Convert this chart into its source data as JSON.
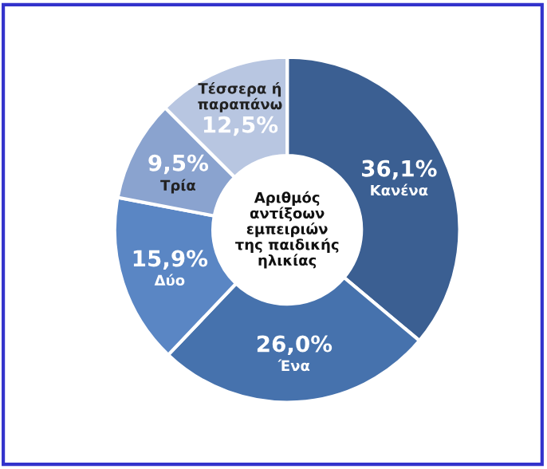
{
  "chart_data": {
    "type": "donut",
    "title": "Αριθμός αντίξοων εμπειριών της παιδικής ηλικίας",
    "categories": [
      "Κανένα",
      "Ένα",
      "Δύο",
      "Τρία",
      "Τέσσερα ή παραπάνω"
    ],
    "values": [
      36.1,
      26.0,
      15.9,
      9.5,
      12.5
    ],
    "value_labels": [
      "36,1%",
      "26,0%",
      "15,9%",
      "9,5%",
      "12,5%"
    ],
    "colors": [
      "#3b5f92",
      "#4672ad",
      "#5a86c4",
      "#8aa3cf",
      "#b8c6e1"
    ],
    "legend": false
  }
}
